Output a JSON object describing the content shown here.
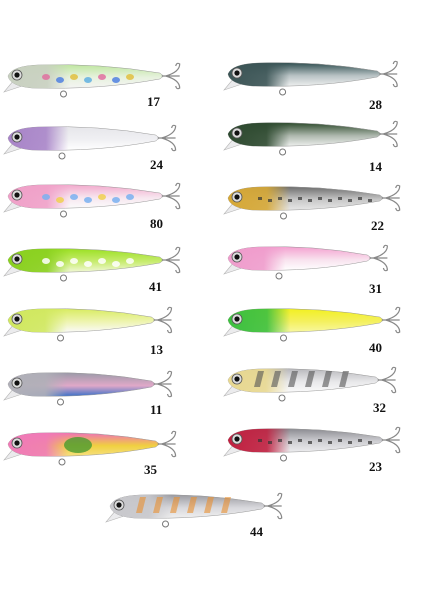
{
  "lures": [
    {
      "label": "17"
    },
    {
      "label": "28"
    },
    {
      "label": "24"
    },
    {
      "label": "14"
    },
    {
      "label": "80"
    },
    {
      "label": "22"
    },
    {
      "label": "41"
    },
    {
      "label": "31"
    },
    {
      "label": "13"
    },
    {
      "label": "40"
    },
    {
      "label": "11"
    },
    {
      "label": "32"
    },
    {
      "label": "35"
    },
    {
      "label": "23"
    },
    {
      "label": "44"
    }
  ]
}
